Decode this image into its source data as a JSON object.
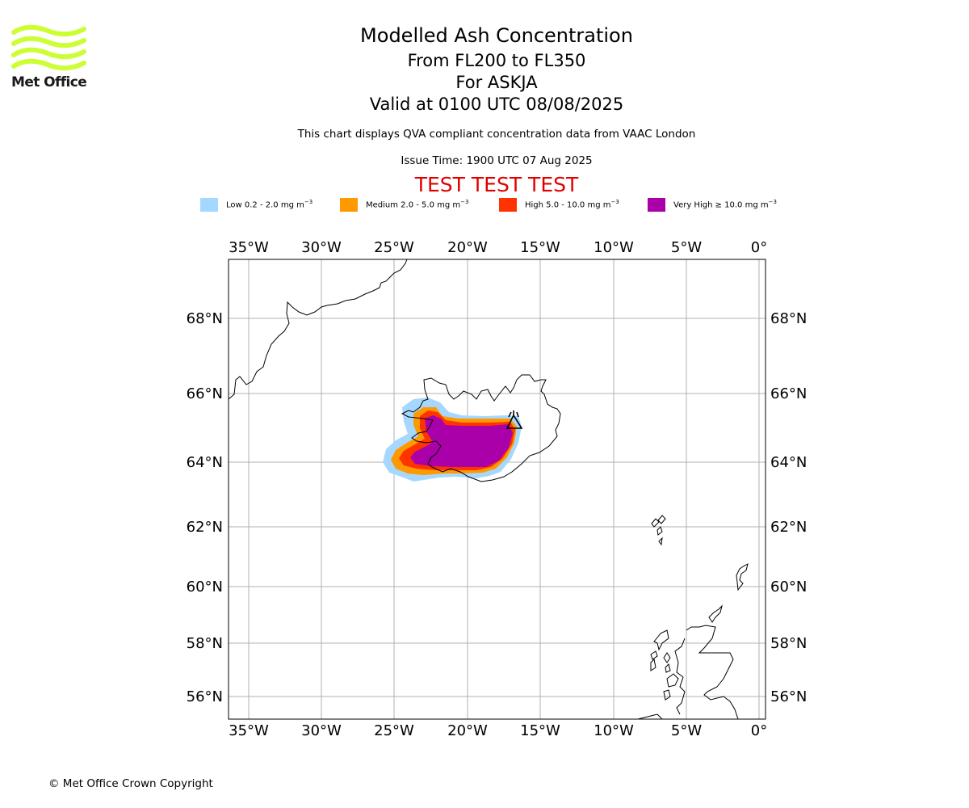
{
  "logo": {
    "text": "Met Office",
    "color": "#ccff33"
  },
  "title": "Modelled Ash Concentration",
  "subtitle_levels": "From FL200 to FL350",
  "subtitle_volcano": "For ASKJA",
  "subtitle_valid": "Valid at 0100 UTC 08/08/2025",
  "description": "This chart displays QVA compliant concentration data from VAAC London",
  "issue_time": "Issue Time: 1900 UTC 07 Aug 2025",
  "test_banner": "TEST TEST TEST",
  "legend": [
    {
      "label": "Low 0.2 - 2.0 mg m",
      "sup": "−3",
      "color": "#a6d8ff"
    },
    {
      "label": "Medium 2.0 - 5.0 mg m",
      "sup": "−3",
      "color": "#ff9900"
    },
    {
      "label": "High 5.0 - 10.0 mg m",
      "sup": "−3",
      "color": "#ff3300"
    },
    {
      "label": "Very High  ≥  10.0 mg m",
      "sup": "−3",
      "color": "#aa00aa"
    }
  ],
  "map": {
    "lon_ticks": [
      "35°W",
      "30°W",
      "25°W",
      "20°W",
      "15°W",
      "10°W",
      "5°W",
      "0°"
    ],
    "lat_ticks": [
      "68°N",
      "66°N",
      "64°N",
      "62°N",
      "60°N",
      "58°N",
      "56°N"
    ],
    "volcano": "ASKJA",
    "gridline_color": "#b0b0b0"
  },
  "copyright": "© Met Office Crown Copyright"
}
